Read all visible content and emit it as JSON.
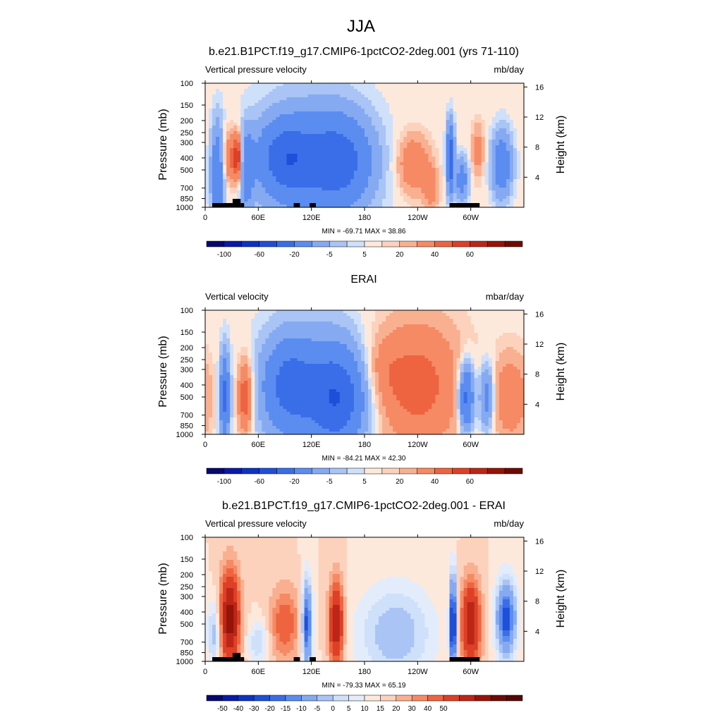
{
  "figure_title": "JJA",
  "chart_data": [
    {
      "type": "heatmap",
      "title": "b.e21.B1PCT.f19_g17.CMIP6-1pctCO2-2deg.001 (yrs 71-110)",
      "left_label": "Vertical pressure velocity",
      "units": "mb/day",
      "ylabel": "Pressure (mb)",
      "ylabel_right": "Height (km)",
      "x_ticks": [
        "0",
        "60E",
        "120E",
        "180",
        "120W",
        "60W"
      ],
      "x_tick_lons": [
        0,
        60,
        120,
        180,
        240,
        300
      ],
      "xlim": [
        0,
        360
      ],
      "y_ticks": [
        "100",
        "150",
        "200",
        "250",
        "300",
        "400",
        "500",
        "700",
        "850",
        "1000"
      ],
      "y_tick_p": [
        100,
        150,
        200,
        250,
        300,
        400,
        500,
        700,
        850,
        1000
      ],
      "ylim": [
        1000,
        100
      ],
      "height_ticks": [
        "4",
        "8",
        "12",
        "16"
      ],
      "height_km": [
        4,
        8,
        12,
        16
      ],
      "min_max_text": "MIN = -69.71  MAX =  38.86",
      "min": -69.71,
      "max": 38.86,
      "colorbar_labels": [
        "-100",
        "-60",
        "-20",
        "-5",
        "5",
        "20",
        "40",
        "60"
      ],
      "colorbar_levels": [
        -120,
        -100,
        -80,
        -60,
        -40,
        -20,
        -10,
        -5,
        -2,
        2,
        5,
        10,
        20,
        30,
        40,
        50,
        60
      ],
      "colorbar_colors": [
        "#08086e",
        "#0a1aa6",
        "#0c33c2",
        "#1f4fd8",
        "#3a6ee8",
        "#5b8cf0",
        "#85aaf2",
        "#a9c4f5",
        "#cfe0fa",
        "#fde9dc",
        "#fcd2bd",
        "#f9b090",
        "#f58a64",
        "#ee6440",
        "#dd4026",
        "#bb2617",
        "#951408",
        "#6e0a04"
      ],
      "topography_lon_ranges": [
        [
          8,
          32
        ],
        [
          31,
          40
        ],
        [
          40,
          44
        ],
        [
          100,
          107
        ],
        [
          118,
          125
        ],
        [
          276,
          310
        ]
      ],
      "field_features": [
        {
          "lon": 14,
          "p": 550,
          "w": 5,
          "h": 0.9,
          "v": -40
        },
        {
          "lon": 30,
          "p": 400,
          "w": 8,
          "h": 0.5,
          "v": 25
        },
        {
          "lon": 37,
          "p": 400,
          "w": 3,
          "h": 0.4,
          "v": 30
        },
        {
          "lon": 47,
          "p": 500,
          "w": 5,
          "h": 0.7,
          "v": -30
        },
        {
          "lon": 90,
          "p": 400,
          "w": 22,
          "h": 0.7,
          "v": -45
        },
        {
          "lon": 150,
          "p": 420,
          "w": 26,
          "h": 0.8,
          "v": -45
        },
        {
          "lon": 120,
          "p": 500,
          "w": 45,
          "h": 1.5,
          "v": -15
        },
        {
          "lon": 235,
          "p": 450,
          "w": 13,
          "h": 0.55,
          "v": 20
        },
        {
          "lon": 255,
          "p": 700,
          "w": 6,
          "h": 0.4,
          "v": 15
        },
        {
          "lon": 277,
          "p": 400,
          "w": 3,
          "h": 0.6,
          "v": -60
        },
        {
          "lon": 290,
          "p": 600,
          "w": 5,
          "h": 0.4,
          "v": -30
        },
        {
          "lon": 308,
          "p": 350,
          "w": 5,
          "h": 0.5,
          "v": 15
        },
        {
          "lon": 335,
          "p": 450,
          "w": 8,
          "h": 0.6,
          "v": -35
        }
      ]
    },
    {
      "type": "heatmap",
      "title": "ERAI",
      "left_label": "Vertical velocity",
      "units": "mbar/day",
      "ylabel": "Pressure (mb)",
      "ylabel_right": "Height (km)",
      "x_ticks": [
        "0",
        "60E",
        "120E",
        "180",
        "120W",
        "60W"
      ],
      "x_tick_lons": [
        0,
        60,
        120,
        180,
        240,
        300
      ],
      "xlim": [
        0,
        360
      ],
      "y_ticks": [
        "100",
        "150",
        "200",
        "250",
        "300",
        "400",
        "500",
        "700",
        "850",
        "1000"
      ],
      "y_tick_p": [
        100,
        150,
        200,
        250,
        300,
        400,
        500,
        700,
        850,
        1000
      ],
      "ylim": [
        1000,
        100
      ],
      "height_ticks": [
        "4",
        "8",
        "12",
        "16"
      ],
      "height_km": [
        4,
        8,
        12,
        16
      ],
      "min_max_text": "MIN = -84.21  MAX =  42.30",
      "min": -84.21,
      "max": 42.3,
      "colorbar_labels": [
        "-100",
        "-60",
        "-20",
        "-5",
        "5",
        "20",
        "40",
        "60"
      ],
      "colorbar_levels": [
        -120,
        -100,
        -80,
        -60,
        -40,
        -20,
        -10,
        -5,
        -2,
        2,
        5,
        10,
        20,
        30,
        40,
        50,
        60
      ],
      "colorbar_colors": [
        "#08086e",
        "#0a1aa6",
        "#0c33c2",
        "#1f4fd8",
        "#3a6ee8",
        "#5b8cf0",
        "#85aaf2",
        "#a9c4f5",
        "#cfe0fa",
        "#fde9dc",
        "#fcd2bd",
        "#f9b090",
        "#f58a64",
        "#ee6440",
        "#dd4026",
        "#bb2617",
        "#951408",
        "#6e0a04"
      ],
      "topography_lon_ranges": [],
      "field_features": [
        {
          "lon": 22,
          "p": 500,
          "w": 4,
          "h": 0.8,
          "v": -45
        },
        {
          "lon": 45,
          "p": 500,
          "w": 6,
          "h": 0.7,
          "v": 30
        },
        {
          "lon": 95,
          "p": 400,
          "w": 20,
          "h": 0.8,
          "v": -40
        },
        {
          "lon": 150,
          "p": 500,
          "w": 22,
          "h": 0.9,
          "v": -50
        },
        {
          "lon": 118,
          "p": 500,
          "w": 40,
          "h": 1.5,
          "v": -15
        },
        {
          "lon": 240,
          "p": 400,
          "w": 35,
          "h": 1.2,
          "v": 25
        },
        {
          "lon": 295,
          "p": 500,
          "w": 6,
          "h": 0.6,
          "v": -50
        },
        {
          "lon": 318,
          "p": 500,
          "w": 6,
          "h": 0.6,
          "v": -30
        },
        {
          "lon": 345,
          "p": 500,
          "w": 15,
          "h": 0.8,
          "v": 18
        },
        {
          "lon": 200,
          "p": 300,
          "w": 15,
          "h": 0.6,
          "v": 8
        }
      ]
    },
    {
      "type": "heatmap",
      "title": "b.e21.B1PCT.f19_g17.CMIP6-1pctCO2-2deg.001 - ERAI",
      "left_label": "Vertical pressure velocity",
      "units": "mb/day",
      "ylabel": "Pressure (mb)",
      "ylabel_right": "Height (km)",
      "x_ticks": [
        "0",
        "60E",
        "120E",
        "180",
        "120W",
        "60W"
      ],
      "x_tick_lons": [
        0,
        60,
        120,
        180,
        240,
        300
      ],
      "xlim": [
        0,
        360
      ],
      "y_ticks": [
        "100",
        "150",
        "200",
        "250",
        "300",
        "400",
        "500",
        "700",
        "850",
        "1000"
      ],
      "y_tick_p": [
        100,
        150,
        200,
        250,
        300,
        400,
        500,
        700,
        850,
        1000
      ],
      "ylim": [
        1000,
        100
      ],
      "height_ticks": [
        "4",
        "8",
        "12",
        "16"
      ],
      "height_km": [
        4,
        8,
        12,
        16
      ],
      "min_max_text": "MIN = -79.33  MAX =  65.19",
      "min": -79.33,
      "max": 65.19,
      "colorbar_labels": [
        "-50",
        "-40",
        "-30",
        "-20",
        "-15",
        "-10",
        "-5",
        "0",
        "5",
        "10",
        "15",
        "20",
        "30",
        "40",
        "50"
      ],
      "colorbar_levels": [
        -60,
        -50,
        -45,
        -40,
        -35,
        -30,
        -20,
        -15,
        -10,
        -5,
        0,
        5,
        10,
        15,
        20,
        30,
        40,
        50,
        60
      ],
      "colorbar_colors": [
        "#08086e",
        "#0a1aa6",
        "#0c33c2",
        "#1f4fd8",
        "#3a6ee8",
        "#5b8cf0",
        "#85aaf2",
        "#a9c4f5",
        "#cfe0fa",
        "#e2ecfb",
        "#fde9dc",
        "#fcd2bd",
        "#f9b090",
        "#f58a64",
        "#ee6440",
        "#dd4026",
        "#bb2617",
        "#951408",
        "#6e0a04",
        "#550703"
      ],
      "topography_lon_ranges": [
        [
          8,
          32
        ],
        [
          31,
          40
        ],
        [
          40,
          44
        ],
        [
          100,
          107
        ],
        [
          118,
          125
        ],
        [
          276,
          310
        ]
      ],
      "field_features": [
        {
          "lon": 28,
          "p": 450,
          "w": 8,
          "h": 0.9,
          "v": 45
        },
        {
          "lon": 10,
          "p": 600,
          "w": 5,
          "h": 0.6,
          "v": -20
        },
        {
          "lon": 90,
          "p": 500,
          "w": 12,
          "h": 0.7,
          "v": 20
        },
        {
          "lon": 115,
          "p": 500,
          "w": 4,
          "h": 0.8,
          "v": -45
        },
        {
          "lon": 148,
          "p": 500,
          "w": 6,
          "h": 0.8,
          "v": 40
        },
        {
          "lon": 215,
          "p": 600,
          "w": 30,
          "h": 0.9,
          "v": -20
        },
        {
          "lon": 280,
          "p": 500,
          "w": 2.5,
          "h": 0.9,
          "v": -60
        },
        {
          "lon": 300,
          "p": 500,
          "w": 8,
          "h": 0.8,
          "v": 40
        },
        {
          "lon": 340,
          "p": 450,
          "w": 8,
          "h": 0.7,
          "v": -45
        },
        {
          "lon": 60,
          "p": 700,
          "w": 8,
          "h": 0.4,
          "v": -15
        }
      ]
    }
  ]
}
